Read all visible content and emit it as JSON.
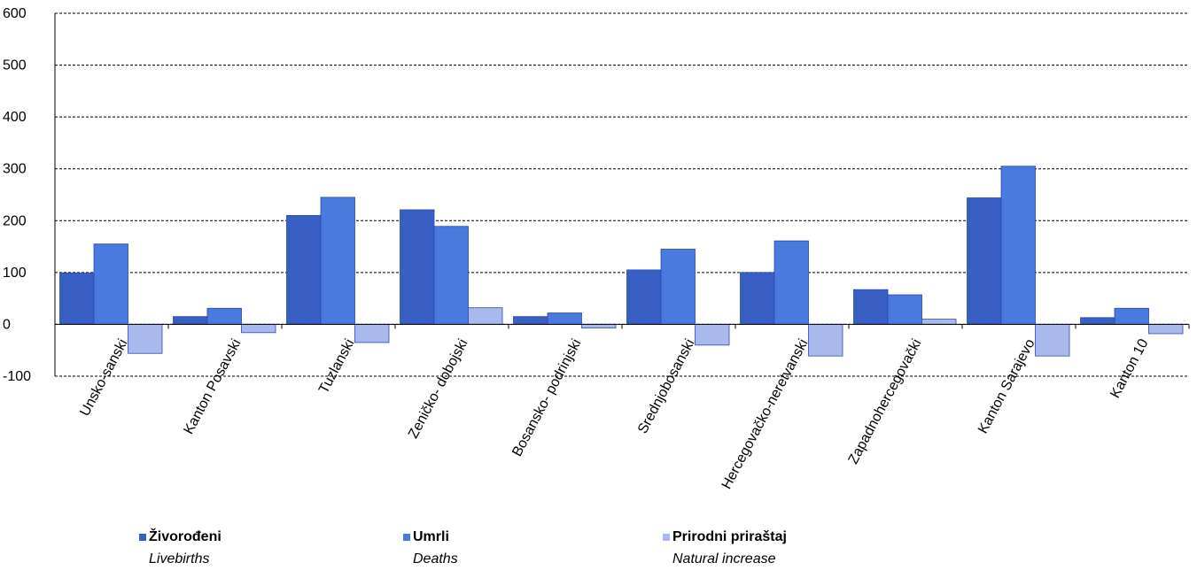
{
  "chart_data": {
    "type": "bar",
    "categories": [
      "Unsko-sanski",
      "Kanton Posavski",
      "Tuzlanski",
      "Zeničko- dobojski",
      "Bosansko- podrinjski",
      "Srednjobosanski",
      "Hercegovačko-neretvanski",
      "Zapadnohercegovački",
      "Kanton Sarajevo",
      "Kanton 10"
    ],
    "series": [
      {
        "name": "Živorođeni",
        "subname": "Livebirths",
        "color": "#3a5fc4",
        "values": [
          99,
          15,
          210,
          221,
          15,
          105,
          100,
          67,
          244,
          13
        ]
      },
      {
        "name": "Umrli",
        "subname": "Deaths",
        "color": "#4a7ae0",
        "values": [
          155,
          31,
          245,
          189,
          22,
          145,
          161,
          57,
          305,
          31
        ]
      },
      {
        "name": "Prirodni priraštaj",
        "subname": "Natural increase",
        "color": "#a9b9ee",
        "values": [
          -56,
          -16,
          -35,
          32,
          -7,
          -40,
          -61,
          10,
          -61,
          -18
        ]
      }
    ],
    "ylim": [
      -100,
      600
    ],
    "yticks": [
      -100,
      0,
      100,
      200,
      300,
      400,
      500,
      600
    ],
    "grid": true,
    "legend_position": "bottom"
  }
}
